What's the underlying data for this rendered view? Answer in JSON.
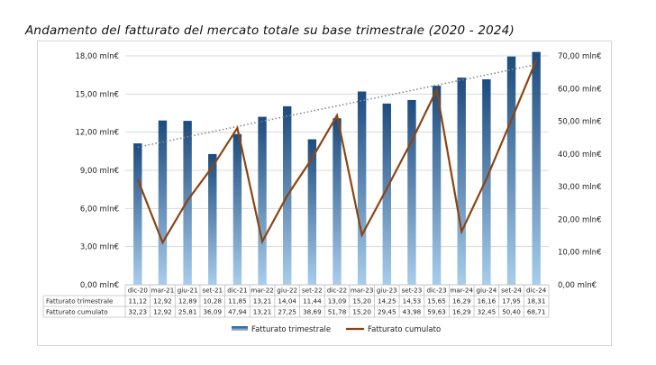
{
  "title": "Andamento del fatturato del mercato totale su base trimestrale (2020 - 2024)",
  "colors": {
    "bar_top": "#1d4b7e",
    "bar_bottom": "#a8cdec",
    "line": "#8b4513",
    "trend": "#8a8a8a",
    "grid": "#d9d9d9"
  },
  "chart_data": {
    "type": "bar",
    "categories": [
      "dic-20",
      "mar-21",
      "giu-21",
      "set-21",
      "dic-21",
      "mar-22",
      "giu-22",
      "set-22",
      "dic-22",
      "mar-23",
      "giu-23",
      "set-23",
      "dic-23",
      "mar-24",
      "giu-24",
      "set-24",
      "dic-24"
    ],
    "series": [
      {
        "name": "Fatturato trimestrale",
        "type": "bar",
        "axis": "left",
        "values": [
          11.12,
          12.92,
          12.89,
          10.28,
          11.85,
          13.21,
          14.04,
          11.44,
          13.09,
          15.2,
          14.25,
          14.53,
          15.65,
          16.29,
          16.16,
          17.95,
          18.31
        ],
        "labels": [
          "11,12",
          "12,92",
          "12,89",
          "10,28",
          "11,85",
          "13,21",
          "14,04",
          "11,44",
          "13,09",
          "15,20",
          "14,25",
          "14,53",
          "15,65",
          "16,29",
          "16,16",
          "17,95",
          "18,31"
        ],
        "trendline": "linear"
      },
      {
        "name": "Fatturato cumulato",
        "type": "line",
        "axis": "right",
        "values": [
          32.23,
          12.92,
          25.81,
          36.09,
          47.94,
          13.21,
          27.25,
          38.69,
          51.78,
          15.2,
          29.45,
          43.98,
          59.63,
          16.29,
          32.45,
          50.4,
          68.71
        ],
        "labels": [
          "32,23",
          "12,92",
          "25,81",
          "36,09",
          "47,94",
          "13,21",
          "27,25",
          "38,69",
          "51,78",
          "15,20",
          "29,45",
          "43,98",
          "59,63",
          "16,29",
          "32,45",
          "50,40",
          "68,71"
        ]
      }
    ],
    "y_left": {
      "min": 0,
      "max": 18,
      "ticks": [
        "0,00 mln€",
        "3,00 mln€",
        "6,00 mln€",
        "9,00 mln€",
        "12,00 mln€",
        "15,00 mln€",
        "18,00 mln€"
      ]
    },
    "y_right": {
      "min": 0,
      "max": 70,
      "ticks": [
        "0,00 mln€",
        "10,00 mln€",
        "20,00 mln€",
        "30,00 mln€",
        "40,00 mln€",
        "50,00 mln€",
        "60,00 mln€",
        "70,00 mln€"
      ]
    },
    "grid": true,
    "data_table": true,
    "legend": {
      "position": "bottom",
      "entries": [
        "Fatturato trimestrale",
        "Fatturato cumulato"
      ]
    }
  }
}
